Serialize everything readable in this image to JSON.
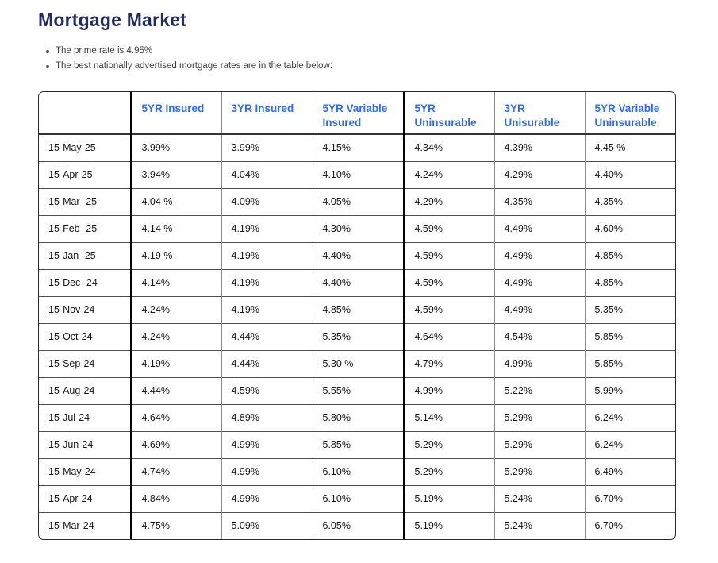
{
  "page": {
    "title": "Mortgage Market",
    "bullets": [
      "The prime rate is 4.95%",
      "The best nationally advertised mortgage rates are in the table below:"
    ]
  },
  "colors": {
    "title": "#242B5F",
    "header_text": "#2F6CE6",
    "cell_text": "#161616",
    "thick_divider": "#050505",
    "grid_line": "#8A8A8A"
  },
  "chart_data": {
    "type": "table",
    "title": "Mortgage Market",
    "prime_rate": "4.95%",
    "columns": [
      "",
      "5YR Insured",
      "3YR Insured",
      "5YR Variable Insured",
      "5YR Uninsurable",
      "3YR Unisurable",
      "5YR Variable Uninsurable"
    ],
    "rows": [
      {
        "date": "15-May-25",
        "values": [
          "3.99%",
          "3.99%",
          "4.15%",
          "4.34%",
          "4.39%",
          "4.45 %"
        ]
      },
      {
        "date": "15-Apr-25",
        "values": [
          "3.94%",
          "4.04%",
          "4.10%",
          "4.24%",
          "4.29%",
          "4.40%"
        ]
      },
      {
        "date": "15-Mar -25",
        "values": [
          "4.04 %",
          "4.09%",
          "4.05%",
          "4.29%",
          "4.35%",
          "4.35%"
        ]
      },
      {
        "date": "15-Feb -25",
        "values": [
          "4.14 %",
          "4.19%",
          "4.30%",
          "4.59%",
          "4.49%",
          "4.60%"
        ]
      },
      {
        "date": "15-Jan -25",
        "values": [
          "4.19 %",
          "4.19%",
          "4.40%",
          "4.59%",
          "4.49%",
          "4.85%"
        ]
      },
      {
        "date": "15-Dec -24",
        "values": [
          "4.14%",
          "4.19%",
          "4.40%",
          "4.59%",
          "4.49%",
          "4.85%"
        ]
      },
      {
        "date": "15-Nov-24",
        "values": [
          "4.24%",
          "4.19%",
          "4.85%",
          "4.59%",
          "4.49%",
          "5.35%"
        ]
      },
      {
        "date": "15-Oct-24",
        "values": [
          "4.24%",
          "4.44%",
          "5.35%",
          "4.64%",
          "4.54%",
          "5.85%"
        ]
      },
      {
        "date": "15-Sep-24",
        "values": [
          "4.19%",
          "4.44%",
          "5.30 %",
          "4.79%",
          "4.99%",
          "5.85%"
        ]
      },
      {
        "date": "15-Aug-24",
        "values": [
          "4.44%",
          "4.59%",
          "5.55%",
          "4.99%",
          "5.22%",
          "5.99%"
        ]
      },
      {
        "date": "15-Jul-24",
        "values": [
          "4.64%",
          "4.89%",
          "5.80%",
          "5.14%",
          "5.29%",
          "6.24%"
        ]
      },
      {
        "date": "15-Jun-24",
        "values": [
          "4.69%",
          "4.99%",
          "5.85%",
          "5.29%",
          "5.29%",
          "6.24%"
        ]
      },
      {
        "date": "15-May-24",
        "values": [
          "4.74%",
          "4.99%",
          "6.10%",
          "5.29%",
          "5.29%",
          "6.49%"
        ]
      },
      {
        "date": "15-Apr-24",
        "values": [
          "4.84%",
          "4.99%",
          "6.10%",
          "5.19%",
          "5.24%",
          "6.70%"
        ]
      },
      {
        "date": "15-Mar-24",
        "values": [
          "4.75%",
          "5.09%",
          "6.05%",
          "5.19%",
          "5.24%",
          "6.70%"
        ]
      }
    ]
  }
}
